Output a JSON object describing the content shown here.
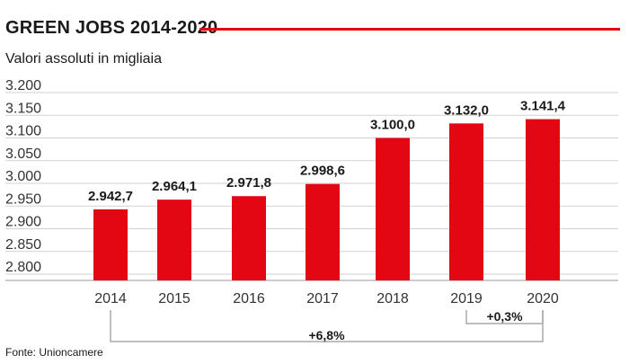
{
  "title": "GREEN JOBS 2014-2020",
  "subtitle": "Valori assoluti in migliaia",
  "source": "Fonte: Unioncamere",
  "accent": "#e30613",
  "chart_data": {
    "type": "bar",
    "categories": [
      "2014",
      "2015",
      "2016",
      "2017",
      "2018",
      "2019",
      "2020"
    ],
    "values": [
      2942.7,
      2964.1,
      2971.8,
      2998.6,
      3100.0,
      3132.0,
      3141.4
    ],
    "value_labels": [
      "2.942,7",
      "2.964,1",
      "2.971,8",
      "2.998,6",
      "3.100,0",
      "3.132,0",
      "3.141,4"
    ],
    "ylim": [
      2800,
      3200
    ],
    "yticks": [
      2800,
      2850,
      2900,
      2950,
      3000,
      3050,
      3100,
      3150,
      3200
    ],
    "ytick_labels": [
      "2.800",
      "2.850",
      "2.900",
      "2.950",
      "3.000",
      "3.050",
      "3.100",
      "3.150",
      "3.200"
    ],
    "grid": true,
    "color": "#e30613",
    "annotations": [
      {
        "text": "+6,8%",
        "from": "2014",
        "to": "2020"
      },
      {
        "text": "+0,3%",
        "from": "2019",
        "to": "2020"
      }
    ]
  }
}
